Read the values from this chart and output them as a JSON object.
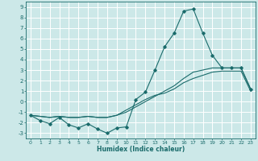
{
  "xlabel": "Humidex (Indice chaleur)",
  "bg_color": "#cce8e8",
  "grid_color": "#ffffff",
  "line_color": "#1a6b6b",
  "xlim": [
    -0.5,
    23.5
  ],
  "ylim": [
    -3.5,
    9.5
  ],
  "xticks": [
    0,
    1,
    2,
    3,
    4,
    5,
    6,
    7,
    8,
    9,
    10,
    11,
    12,
    13,
    14,
    15,
    16,
    17,
    18,
    19,
    20,
    21,
    22,
    23
  ],
  "yticks": [
    -3,
    -2,
    -1,
    0,
    1,
    2,
    3,
    4,
    5,
    6,
    7,
    8,
    9
  ],
  "series1_x": [
    0,
    1,
    2,
    3,
    4,
    5,
    6,
    7,
    8,
    9,
    10,
    11,
    12,
    13,
    14,
    15,
    16,
    17,
    18,
    19,
    20,
    21,
    22,
    23
  ],
  "series1_y": [
    -1.3,
    -1.8,
    -2.1,
    -1.5,
    -2.2,
    -2.5,
    -2.1,
    -2.6,
    -3.0,
    -2.5,
    -2.4,
    0.2,
    0.9,
    3.0,
    5.2,
    6.5,
    8.6,
    8.8,
    6.5,
    4.4,
    3.2,
    3.2,
    3.2,
    1.2
  ],
  "series2_x": [
    0,
    1,
    2,
    3,
    4,
    5,
    6,
    7,
    8,
    9,
    10,
    11,
    12,
    13,
    14,
    15,
    16,
    17,
    18,
    19,
    20,
    21,
    22,
    23
  ],
  "series2_y": [
    -1.3,
    -1.4,
    -1.5,
    -1.4,
    -1.5,
    -1.5,
    -1.4,
    -1.5,
    -1.5,
    -1.3,
    -1.0,
    -0.5,
    0.0,
    0.5,
    1.0,
    1.5,
    2.2,
    2.8,
    3.0,
    3.2,
    3.2,
    3.2,
    3.2,
    1.2
  ],
  "series3_x": [
    0,
    1,
    2,
    3,
    4,
    5,
    6,
    7,
    8,
    9,
    10,
    11,
    12,
    13,
    14,
    15,
    16,
    17,
    18,
    19,
    20,
    21,
    22,
    23
  ],
  "series3_y": [
    -1.3,
    -1.4,
    -1.5,
    -1.4,
    -1.5,
    -1.5,
    -1.4,
    -1.5,
    -1.5,
    -1.3,
    -0.8,
    -0.3,
    0.2,
    0.6,
    0.8,
    1.2,
    1.8,
    2.2,
    2.5,
    2.8,
    2.9,
    2.9,
    2.9,
    1.0
  ]
}
